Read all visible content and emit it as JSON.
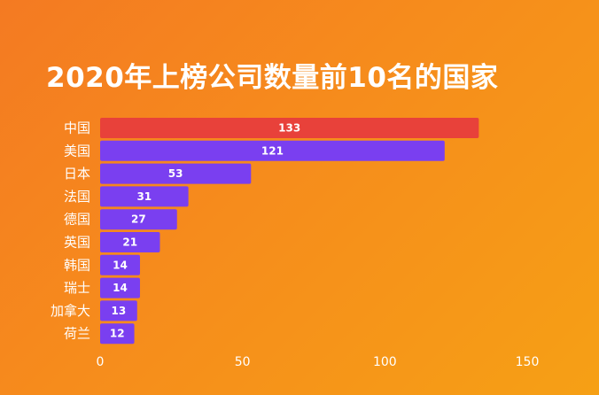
{
  "chart_data": {
    "type": "bar",
    "orientation": "horizontal",
    "title": "2020年上榜公司数量前10名的国家",
    "categories": [
      "中国",
      "美国",
      "日本",
      "法国",
      "德国",
      "英国",
      "韩国",
      "瑞士",
      "加拿大",
      "荷兰"
    ],
    "values": [
      133,
      121,
      53,
      31,
      27,
      21,
      14,
      14,
      13,
      12
    ],
    "data_labels": [
      "133",
      "121",
      "53",
      "31",
      "27",
      "21",
      "14",
      "14",
      "13",
      "12"
    ],
    "xlim": [
      0,
      150
    ],
    "xticks": [
      0,
      50,
      100,
      150
    ],
    "xtick_labels": [
      "0",
      "50",
      "100",
      "150"
    ],
    "bar_colors": [
      "#e8413a",
      "#7a3ff0",
      "#7a3ff0",
      "#7a3ff0",
      "#7a3ff0",
      "#7a3ff0",
      "#7a3ff0",
      "#7a3ff0",
      "#7a3ff0",
      "#7a3ff0"
    ],
    "grid": false,
    "legend": "none"
  }
}
